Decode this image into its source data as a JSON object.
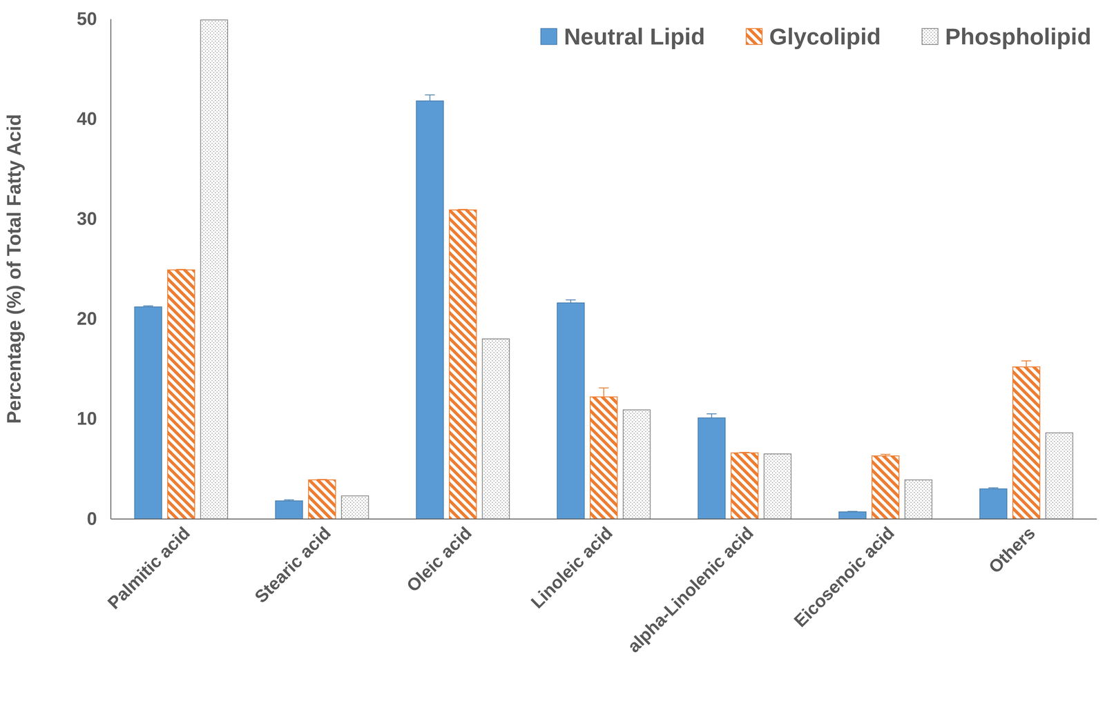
{
  "chart_data": {
    "type": "bar",
    "y_label": "Percentage (%) of Total Fatty Acid",
    "categories": [
      "Palmitic acid",
      "Stearic acid",
      "Oleic acid",
      "Linoleic acid",
      "alpha-Linolenic acid",
      "Eicosenoic acid",
      "Others"
    ],
    "series": [
      {
        "name": "Neutral Lipid",
        "color": "#5b9bd5",
        "values": [
          21.2,
          1.8,
          41.8,
          21.6,
          10.1,
          0.7,
          3.0
        ],
        "errors": [
          0.1,
          0.1,
          0.6,
          0.3,
          0.4,
          0.05,
          0.1
        ]
      },
      {
        "name": "Glycolipid",
        "color": "#ed7d31",
        "values": [
          24.9,
          3.9,
          30.9,
          12.2,
          6.6,
          6.3,
          15.2
        ],
        "errors": [
          0.05,
          0.05,
          0.05,
          0.9,
          0.05,
          0.15,
          0.6
        ]
      },
      {
        "name": "Phospholipid",
        "color": "#8c8c8c",
        "values": [
          49.9,
          2.3,
          18.0,
          10.9,
          6.5,
          3.9,
          8.6
        ]
      }
    ],
    "ylim": [
      0,
      50
    ],
    "yticks": [
      0,
      10,
      20,
      30,
      40,
      50
    ],
    "grid": false,
    "legend": "upper-right"
  }
}
